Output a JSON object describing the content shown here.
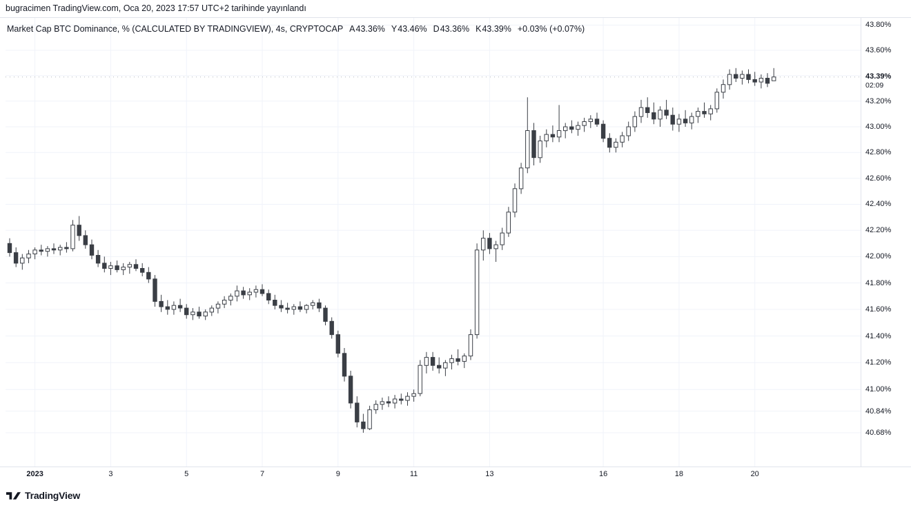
{
  "published_line": "bugracimen TradingView.com, Oca 20, 2023 17:57 UTC+2 tarihinde yayınlandı",
  "legend": {
    "title": "Market Cap BTC Dominance, % (CALCULATED BY TRADINGVIEW), 4s, CRYPTOCAP",
    "ohlc": [
      {
        "label": "A",
        "value": "43.36%"
      },
      {
        "label": "Y",
        "value": "43.46%"
      },
      {
        "label": "D",
        "value": "43.36%"
      },
      {
        "label": "K",
        "value": "43.39%"
      }
    ],
    "change": "+0.03% (+0.07%)"
  },
  "footer": {
    "logo_text": "TradingView"
  },
  "chart_data": {
    "type": "candlestick",
    "title": "Market Cap BTC Dominance, %",
    "symbol": "CRYPTOCAP",
    "interval": "4s (4 hour candles)",
    "legend_note": "CALCULATED BY TRADINGVIEW",
    "last": {
      "open": 43.36,
      "high": 43.46,
      "low": 43.36,
      "close": 43.39,
      "price_label": "43.39%",
      "countdown": "02:09",
      "change": "+0.03% (+0.07%)"
    },
    "ylim": [
      40.33,
      43.85
    ],
    "y_ticks": [
      {
        "text": "43.80%",
        "value": 43.8
      },
      {
        "text": "43.60%",
        "value": 43.6
      },
      {
        "text": "",
        "value": 43.4
      },
      {
        "text": "43.20%",
        "value": 43.2
      },
      {
        "text": "43.00%",
        "value": 43.0
      },
      {
        "text": "42.80%",
        "value": 42.8
      },
      {
        "text": "42.60%",
        "value": 42.6
      },
      {
        "text": "42.40%",
        "value": 42.4
      },
      {
        "text": "42.20%",
        "value": 42.2
      },
      {
        "text": "42.00%",
        "value": 42.0
      },
      {
        "text": "41.80%",
        "value": 41.8
      },
      {
        "text": "41.60%",
        "value": 41.6
      },
      {
        "text": "41.40%",
        "value": 41.4
      },
      {
        "text": "41.20%",
        "value": 41.2
      },
      {
        "text": "41.00%",
        "value": 41.0
      },
      {
        "text": "40.84%",
        "value": 40.84
      },
      {
        "text": "40.68%",
        "value": 40.68
      }
    ],
    "x_ticks": [
      {
        "text": "2023",
        "index": 4,
        "bold": true
      },
      {
        "text": "3",
        "index": 16
      },
      {
        "text": "5",
        "index": 28
      },
      {
        "text": "7",
        "index": 40
      },
      {
        "text": "9",
        "index": 52
      },
      {
        "text": "11",
        "index": 64
      },
      {
        "text": "13",
        "index": 76
      },
      {
        "text": "16",
        "index": 94
      },
      {
        "text": "18",
        "index": 106
      },
      {
        "text": "20",
        "index": 118
      }
    ],
    "candles": [
      [
        42.1,
        42.14,
        42.0,
        42.03
      ],
      [
        42.03,
        42.07,
        41.92,
        41.95
      ],
      [
        41.95,
        42.02,
        41.9,
        41.99
      ],
      [
        41.99,
        42.05,
        41.95,
        42.02
      ],
      [
        42.02,
        42.07,
        41.98,
        42.05
      ],
      [
        42.05,
        42.09,
        42.01,
        42.04
      ],
      [
        42.04,
        42.08,
        42.0,
        42.06
      ],
      [
        42.06,
        42.1,
        42.02,
        42.05
      ],
      [
        42.05,
        42.09,
        42.01,
        42.07
      ],
      [
        42.07,
        42.11,
        42.03,
        42.06
      ],
      [
        42.06,
        42.28,
        42.04,
        42.24
      ],
      [
        42.24,
        42.31,
        42.12,
        42.16
      ],
      [
        42.16,
        42.2,
        42.06,
        42.09
      ],
      [
        42.09,
        42.13,
        41.98,
        42.01
      ],
      [
        42.01,
        42.05,
        41.92,
        41.95
      ],
      [
        41.95,
        42.0,
        41.88,
        41.91
      ],
      [
        41.91,
        41.96,
        41.86,
        41.93
      ],
      [
        41.93,
        41.97,
        41.88,
        41.9
      ],
      [
        41.9,
        41.95,
        41.86,
        41.92
      ],
      [
        41.92,
        41.96,
        41.87,
        41.94
      ],
      [
        41.94,
        41.98,
        41.89,
        41.91
      ],
      [
        41.91,
        41.95,
        41.85,
        41.88
      ],
      [
        41.88,
        41.92,
        41.8,
        41.83
      ],
      [
        41.83,
        41.86,
        41.62,
        41.66
      ],
      [
        41.66,
        41.71,
        41.58,
        41.62
      ],
      [
        41.62,
        41.67,
        41.56,
        41.6
      ],
      [
        41.6,
        41.66,
        41.56,
        41.63
      ],
      [
        41.63,
        41.68,
        41.58,
        41.61
      ],
      [
        41.61,
        41.64,
        41.53,
        41.56
      ],
      [
        41.56,
        41.61,
        41.52,
        41.58
      ],
      [
        41.58,
        41.62,
        41.53,
        41.55
      ],
      [
        41.55,
        41.6,
        41.52,
        41.58
      ],
      [
        41.58,
        41.63,
        41.55,
        41.61
      ],
      [
        41.61,
        41.66,
        41.57,
        41.64
      ],
      [
        41.64,
        41.7,
        41.61,
        41.67
      ],
      [
        41.67,
        41.72,
        41.63,
        41.7
      ],
      [
        41.7,
        41.78,
        41.66,
        41.74
      ],
      [
        41.74,
        41.77,
        41.68,
        41.71
      ],
      [
        41.71,
        41.76,
        41.67,
        41.73
      ],
      [
        41.73,
        41.78,
        41.69,
        41.75
      ],
      [
        41.75,
        41.79,
        41.7,
        41.72
      ],
      [
        41.72,
        41.75,
        41.64,
        41.67
      ],
      [
        41.67,
        41.71,
        41.6,
        41.63
      ],
      [
        41.63,
        41.67,
        41.58,
        41.61
      ],
      [
        41.61,
        41.65,
        41.57,
        41.6
      ],
      [
        41.6,
        41.64,
        41.56,
        41.62
      ],
      [
        41.62,
        41.66,
        41.58,
        41.6
      ],
      [
        41.6,
        41.64,
        41.57,
        41.63
      ],
      [
        41.63,
        41.67,
        41.6,
        41.65
      ],
      [
        41.65,
        41.68,
        41.58,
        41.61
      ],
      [
        41.61,
        41.63,
        41.48,
        41.51
      ],
      [
        41.51,
        41.54,
        41.38,
        41.41
      ],
      [
        41.41,
        41.44,
        41.24,
        41.27
      ],
      [
        41.27,
        41.31,
        41.06,
        41.1
      ],
      [
        41.1,
        41.14,
        40.86,
        40.9
      ],
      [
        40.9,
        40.95,
        40.72,
        40.76
      ],
      [
        40.76,
        40.82,
        40.68,
        40.71
      ],
      [
        40.71,
        40.88,
        40.7,
        40.85
      ],
      [
        40.85,
        40.92,
        40.82,
        40.89
      ],
      [
        40.89,
        40.94,
        40.85,
        40.91
      ],
      [
        40.91,
        40.95,
        40.87,
        40.9
      ],
      [
        40.9,
        40.96,
        40.86,
        40.93
      ],
      [
        40.93,
        40.97,
        40.89,
        40.92
      ],
      [
        40.92,
        40.98,
        40.88,
        40.95
      ],
      [
        40.95,
        41.0,
        40.91,
        40.97
      ],
      [
        40.97,
        41.22,
        40.95,
        41.18
      ],
      [
        41.18,
        41.28,
        41.12,
        41.24
      ],
      [
        41.24,
        41.28,
        41.14,
        41.18
      ],
      [
        41.18,
        41.24,
        41.12,
        41.16
      ],
      [
        41.16,
        41.22,
        41.1,
        41.2
      ],
      [
        41.2,
        41.26,
        41.15,
        41.23
      ],
      [
        41.23,
        41.3,
        41.18,
        41.21
      ],
      [
        41.21,
        41.27,
        41.16,
        41.25
      ],
      [
        41.25,
        41.45,
        41.22,
        41.41
      ],
      [
        41.41,
        42.1,
        41.38,
        42.05
      ],
      [
        42.05,
        42.2,
        41.97,
        42.14
      ],
      [
        42.14,
        42.18,
        42.02,
        42.06
      ],
      [
        42.06,
        42.12,
        41.96,
        42.09
      ],
      [
        42.09,
        42.22,
        42.05,
        42.18
      ],
      [
        42.18,
        42.38,
        42.15,
        42.34
      ],
      [
        42.34,
        42.56,
        42.3,
        42.52
      ],
      [
        42.52,
        42.72,
        42.48,
        42.68
      ],
      [
        42.68,
        43.23,
        42.64,
        42.97
      ],
      [
        42.97,
        43.03,
        42.7,
        42.76
      ],
      [
        42.76,
        42.93,
        42.72,
        42.89
      ],
      [
        42.89,
        42.98,
        42.84,
        42.94
      ],
      [
        42.94,
        43.01,
        42.88,
        42.92
      ],
      [
        42.92,
        43.17,
        42.88,
        42.97
      ],
      [
        42.97,
        43.03,
        42.91,
        43.0
      ],
      [
        43.0,
        43.05,
        42.95,
        42.98
      ],
      [
        42.98,
        43.04,
        42.93,
        43.01
      ],
      [
        43.01,
        43.07,
        42.96,
        43.04
      ],
      [
        43.04,
        43.09,
        42.99,
        43.06
      ],
      [
        43.06,
        43.11,
        43.0,
        43.02
      ],
      [
        43.02,
        43.05,
        42.88,
        42.91
      ],
      [
        42.91,
        42.95,
        42.8,
        42.84
      ],
      [
        42.84,
        42.91,
        42.8,
        42.88
      ],
      [
        42.88,
        42.96,
        42.84,
        42.93
      ],
      [
        42.93,
        43.04,
        42.89,
        43.0
      ],
      [
        43.0,
        43.12,
        42.96,
        43.08
      ],
      [
        43.08,
        43.21,
        43.03,
        43.15
      ],
      [
        43.15,
        43.23,
        43.07,
        43.11
      ],
      [
        43.11,
        43.19,
        43.02,
        43.06
      ],
      [
        43.06,
        43.16,
        43.0,
        43.13
      ],
      [
        43.13,
        43.21,
        43.06,
        43.09
      ],
      [
        43.09,
        43.15,
        42.97,
        43.02
      ],
      [
        43.02,
        43.1,
        42.96,
        43.06
      ],
      [
        43.06,
        43.13,
        43.0,
        43.03
      ],
      [
        43.03,
        43.11,
        42.98,
        43.08
      ],
      [
        43.08,
        43.15,
        43.03,
        43.12
      ],
      [
        43.12,
        43.19,
        43.07,
        43.1
      ],
      [
        43.1,
        43.17,
        43.05,
        43.14
      ],
      [
        43.14,
        43.3,
        43.11,
        43.27
      ],
      [
        43.27,
        43.37,
        43.22,
        43.33
      ],
      [
        43.33,
        43.45,
        43.29,
        43.41
      ],
      [
        43.41,
        43.46,
        43.35,
        43.38
      ],
      [
        43.38,
        43.44,
        43.33,
        43.41
      ],
      [
        43.41,
        43.45,
        43.34,
        43.37
      ],
      [
        43.37,
        43.43,
        43.32,
        43.35
      ],
      [
        43.35,
        43.41,
        43.3,
        43.38
      ],
      [
        43.38,
        43.42,
        43.31,
        43.34
      ],
      [
        43.36,
        43.46,
        43.36,
        43.39
      ]
    ],
    "colors": {
      "up": "#ffffff",
      "down": "#3a3e45",
      "border": "#3a3e45",
      "wick": "#3a3e45",
      "grid": "#f0f3fa",
      "last_price_line": "#b2b5be",
      "axis_line": "#e0e3eb",
      "text": "#131722",
      "background": "#ffffff"
    }
  }
}
